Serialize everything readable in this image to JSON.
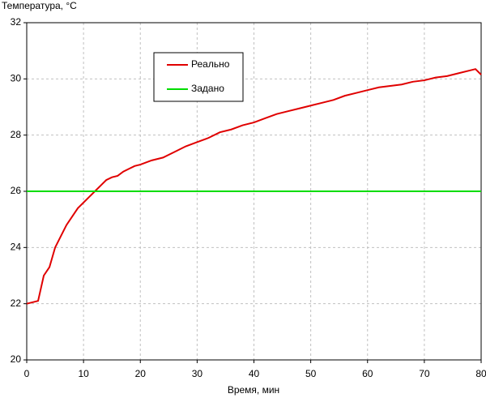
{
  "chart_data": {
    "type": "line",
    "y_label": "Температура, °C",
    "x_label": "Время, мин",
    "xlim": [
      0,
      80
    ],
    "ylim": [
      20,
      32
    ],
    "xticks": [
      0,
      10,
      20,
      30,
      40,
      50,
      60,
      70,
      80
    ],
    "yticks": [
      20,
      22,
      24,
      26,
      28,
      30,
      32
    ],
    "grid": true,
    "series": [
      {
        "name": "Реально",
        "color": "#e00000",
        "x": [
          0,
          1,
          2,
          3,
          4,
          5,
          6,
          7,
          8,
          9,
          10,
          11,
          12,
          13,
          14,
          15,
          16,
          17,
          18,
          19,
          20,
          22,
          24,
          26,
          28,
          30,
          32,
          34,
          36,
          38,
          40,
          42,
          44,
          46,
          48,
          50,
          52,
          54,
          56,
          58,
          60,
          62,
          64,
          66,
          68,
          70,
          72,
          74,
          76,
          78,
          79,
          80
        ],
        "values": [
          22.0,
          22.05,
          22.1,
          23.0,
          23.3,
          24.0,
          24.4,
          24.8,
          25.1,
          25.4,
          25.6,
          25.8,
          26.0,
          26.2,
          26.4,
          26.5,
          26.55,
          26.7,
          26.8,
          26.9,
          26.95,
          27.1,
          27.2,
          27.4,
          27.6,
          27.75,
          27.9,
          28.1,
          28.2,
          28.35,
          28.45,
          28.6,
          28.75,
          28.85,
          28.95,
          29.05,
          29.15,
          29.25,
          29.4,
          29.5,
          29.6,
          29.7,
          29.75,
          29.8,
          29.9,
          29.95,
          30.05,
          30.1,
          30.2,
          30.3,
          30.35,
          30.15
        ]
      },
      {
        "name": "Задано",
        "color": "#00dd00",
        "x": [
          0,
          80
        ],
        "values": [
          26,
          26
        ]
      }
    ]
  }
}
